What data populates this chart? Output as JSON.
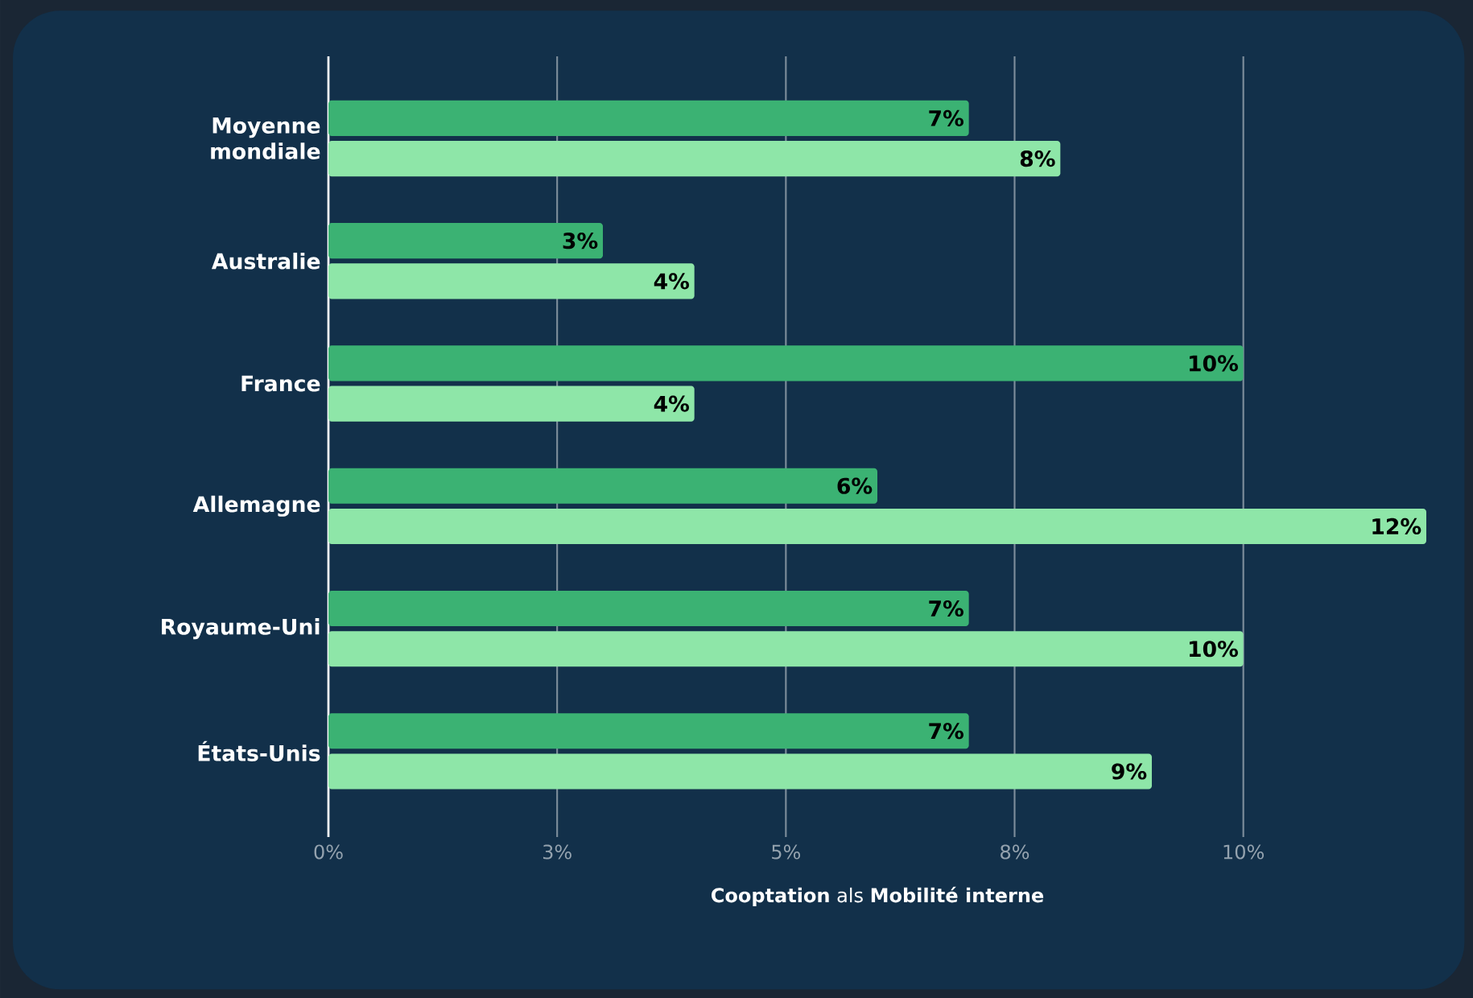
{
  "chart_data": {
    "type": "bar",
    "orientation": "horizontal",
    "categories": [
      "Moyenne mondiale",
      "Australie",
      "France",
      "Allemagne",
      "Royaume-Uni",
      "États-Unis"
    ],
    "series": [
      {
        "color": "#3bb273",
        "values": [
          7,
          3,
          10,
          6,
          7,
          7
        ],
        "value_labels": [
          "7%",
          "3%",
          "10%",
          "6%",
          "7%",
          "7%"
        ]
      },
      {
        "color": "#8ee6a8",
        "values": [
          8,
          4,
          4,
          12,
          10,
          9
        ],
        "value_labels": [
          "8%",
          "4%",
          "4%",
          "12%",
          "10%",
          "9%"
        ]
      }
    ],
    "xlabel": "**Cooptation** als **Mobilité interne**",
    "xlim": [
      0,
      12
    ],
    "xticks": [
      {
        "value": 0,
        "label": "0%"
      },
      {
        "value": 2.5,
        "label": "3%"
      },
      {
        "value": 5,
        "label": "5%"
      },
      {
        "value": 7.5,
        "label": "8%"
      },
      {
        "value": 10,
        "label": "10%"
      }
    ],
    "grid": "x"
  }
}
